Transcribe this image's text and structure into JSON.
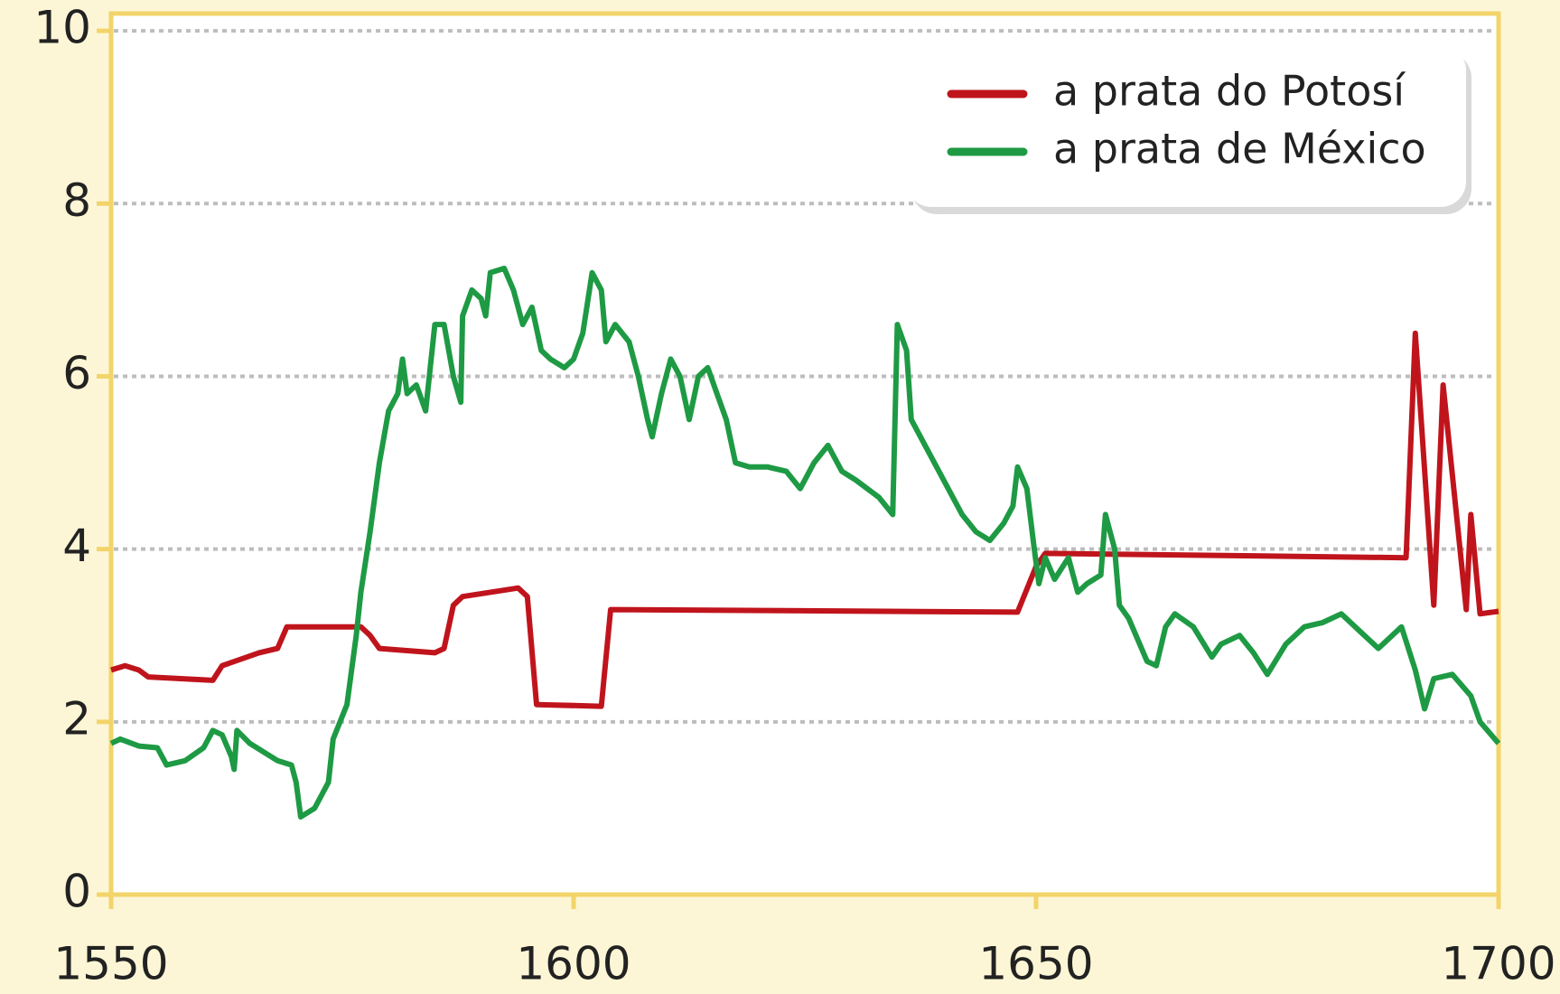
{
  "chart_data": {
    "type": "line",
    "xlim": [
      1550,
      1700
    ],
    "xticks": [
      1550,
      1600,
      1650,
      1700
    ],
    "ylim": [
      0,
      10.2
    ],
    "yticks": [
      0,
      2,
      4,
      6,
      8,
      10
    ],
    "grid": true,
    "legend": "upper right",
    "series": [
      {
        "name": "a prata do Potosí",
        "color": "#c0141c",
        "x": [
          1550,
          1551.5,
          1553,
          1554,
          1561,
          1562,
          1566,
          1568,
          1569,
          1577,
          1578,
          1579,
          1585,
          1586,
          1587,
          1588,
          1594,
          1595,
          1596,
          1603,
          1604,
          1648,
          1650,
          1651,
          1690,
          1691,
          1693,
          1694,
          1696.5,
          1697,
          1698,
          1700
        ],
        "values": [
          2.6,
          2.65,
          2.6,
          2.52,
          2.48,
          2.65,
          2.8,
          2.85,
          3.1,
          3.1,
          3.0,
          2.85,
          2.8,
          2.85,
          3.35,
          3.45,
          3.55,
          3.45,
          2.2,
          2.18,
          3.3,
          3.27,
          3.8,
          3.95,
          3.9,
          6.5,
          3.35,
          5.9,
          3.3,
          4.4,
          3.25,
          3.28
        ]
      },
      {
        "name": "a prata de México",
        "color": "#1e9a44",
        "x": [
          1550,
          1551,
          1553,
          1555,
          1556,
          1558,
          1560,
          1561,
          1562,
          1563,
          1563.3,
          1563.6,
          1565,
          1568,
          1569.5,
          1570,
          1570.5,
          1572,
          1573.5,
          1574,
          1575.5,
          1576.5,
          1577,
          1578,
          1579,
          1580,
          1581,
          1581.5,
          1582,
          1583,
          1584,
          1585,
          1586,
          1587,
          1587.8,
          1588,
          1589,
          1590,
          1590.5,
          1591,
          1592.5,
          1593.5,
          1594.5,
          1595.5,
          1596.5,
          1597.5,
          1599,
          1600,
          1601,
          1602,
          1603,
          1603.5,
          1604.5,
          1606,
          1607,
          1608,
          1608.5,
          1609.5,
          1610.5,
          1611.5,
          1612.5,
          1613.5,
          1614.5,
          1615.5,
          1616.5,
          1617.5,
          1619,
          1621,
          1623,
          1624.5,
          1626,
          1627.5,
          1629,
          1630.5,
          1633,
          1634.5,
          1635,
          1636,
          1636.5,
          1638,
          1640,
          1642,
          1643.5,
          1645,
          1646.5,
          1647.5,
          1648,
          1649,
          1649.8,
          1650.3,
          1651,
          1652,
          1653.5,
          1654.5,
          1655.5,
          1657,
          1657.5,
          1658.5,
          1659,
          1660,
          1662,
          1663,
          1664,
          1665,
          1667,
          1669,
          1670,
          1672,
          1673.5,
          1675,
          1677,
          1679,
          1681,
          1683,
          1685,
          1687,
          1689.5,
          1691,
          1692,
          1693,
          1695,
          1697,
          1698,
          1700
        ],
        "values": [
          1.75,
          1.8,
          1.72,
          1.7,
          1.5,
          1.55,
          1.7,
          1.9,
          1.85,
          1.6,
          1.45,
          1.9,
          1.75,
          1.55,
          1.5,
          1.3,
          0.9,
          1.0,
          1.3,
          1.8,
          2.2,
          3.0,
          3.5,
          4.2,
          5.0,
          5.6,
          5.8,
          6.2,
          5.8,
          5.9,
          5.6,
          6.6,
          6.6,
          6.0,
          5.7,
          6.7,
          7.0,
          6.9,
          6.7,
          7.2,
          7.25,
          7.0,
          6.6,
          6.8,
          6.3,
          6.2,
          6.1,
          6.2,
          6.5,
          7.2,
          7.0,
          6.4,
          6.6,
          6.4,
          6.0,
          5.5,
          5.3,
          5.8,
          6.2,
          6.0,
          5.5,
          6.0,
          6.1,
          5.8,
          5.5,
          5.0,
          4.95,
          4.95,
          4.9,
          4.7,
          5.0,
          5.2,
          4.9,
          4.8,
          4.6,
          4.4,
          6.6,
          6.3,
          5.5,
          5.2,
          4.8,
          4.4,
          4.2,
          4.1,
          4.3,
          4.5,
          4.95,
          4.7,
          4.0,
          3.6,
          3.9,
          3.65,
          3.9,
          3.5,
          3.6,
          3.7,
          4.4,
          4.0,
          3.35,
          3.2,
          2.7,
          2.65,
          3.1,
          3.25,
          3.1,
          2.75,
          2.9,
          3.0,
          2.8,
          2.55,
          2.9,
          3.1,
          3.15,
          3.25,
          3.05,
          2.85,
          3.1,
          2.6,
          2.15,
          2.5,
          2.55,
          2.3,
          2.0,
          1.75
        ]
      }
    ]
  }
}
